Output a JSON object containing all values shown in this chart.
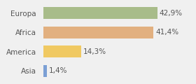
{
  "categories": [
    "Europa",
    "Africa",
    "America",
    "Asia"
  ],
  "values": [
    42.9,
    41.4,
    14.3,
    1.4
  ],
  "labels": [
    "42,9%",
    "41,4%",
    "14,3%",
    "1,4%"
  ],
  "bar_colors": [
    "#a8bc8a",
    "#e2b080",
    "#f0c962",
    "#7b9fd4"
  ],
  "background_color": "#f0f0f0",
  "xlim": [
    0,
    56
  ],
  "bar_height": 0.62,
  "label_fontsize": 7.5,
  "tick_fontsize": 7.5,
  "tick_color": "#555555",
  "label_color": "#555555"
}
